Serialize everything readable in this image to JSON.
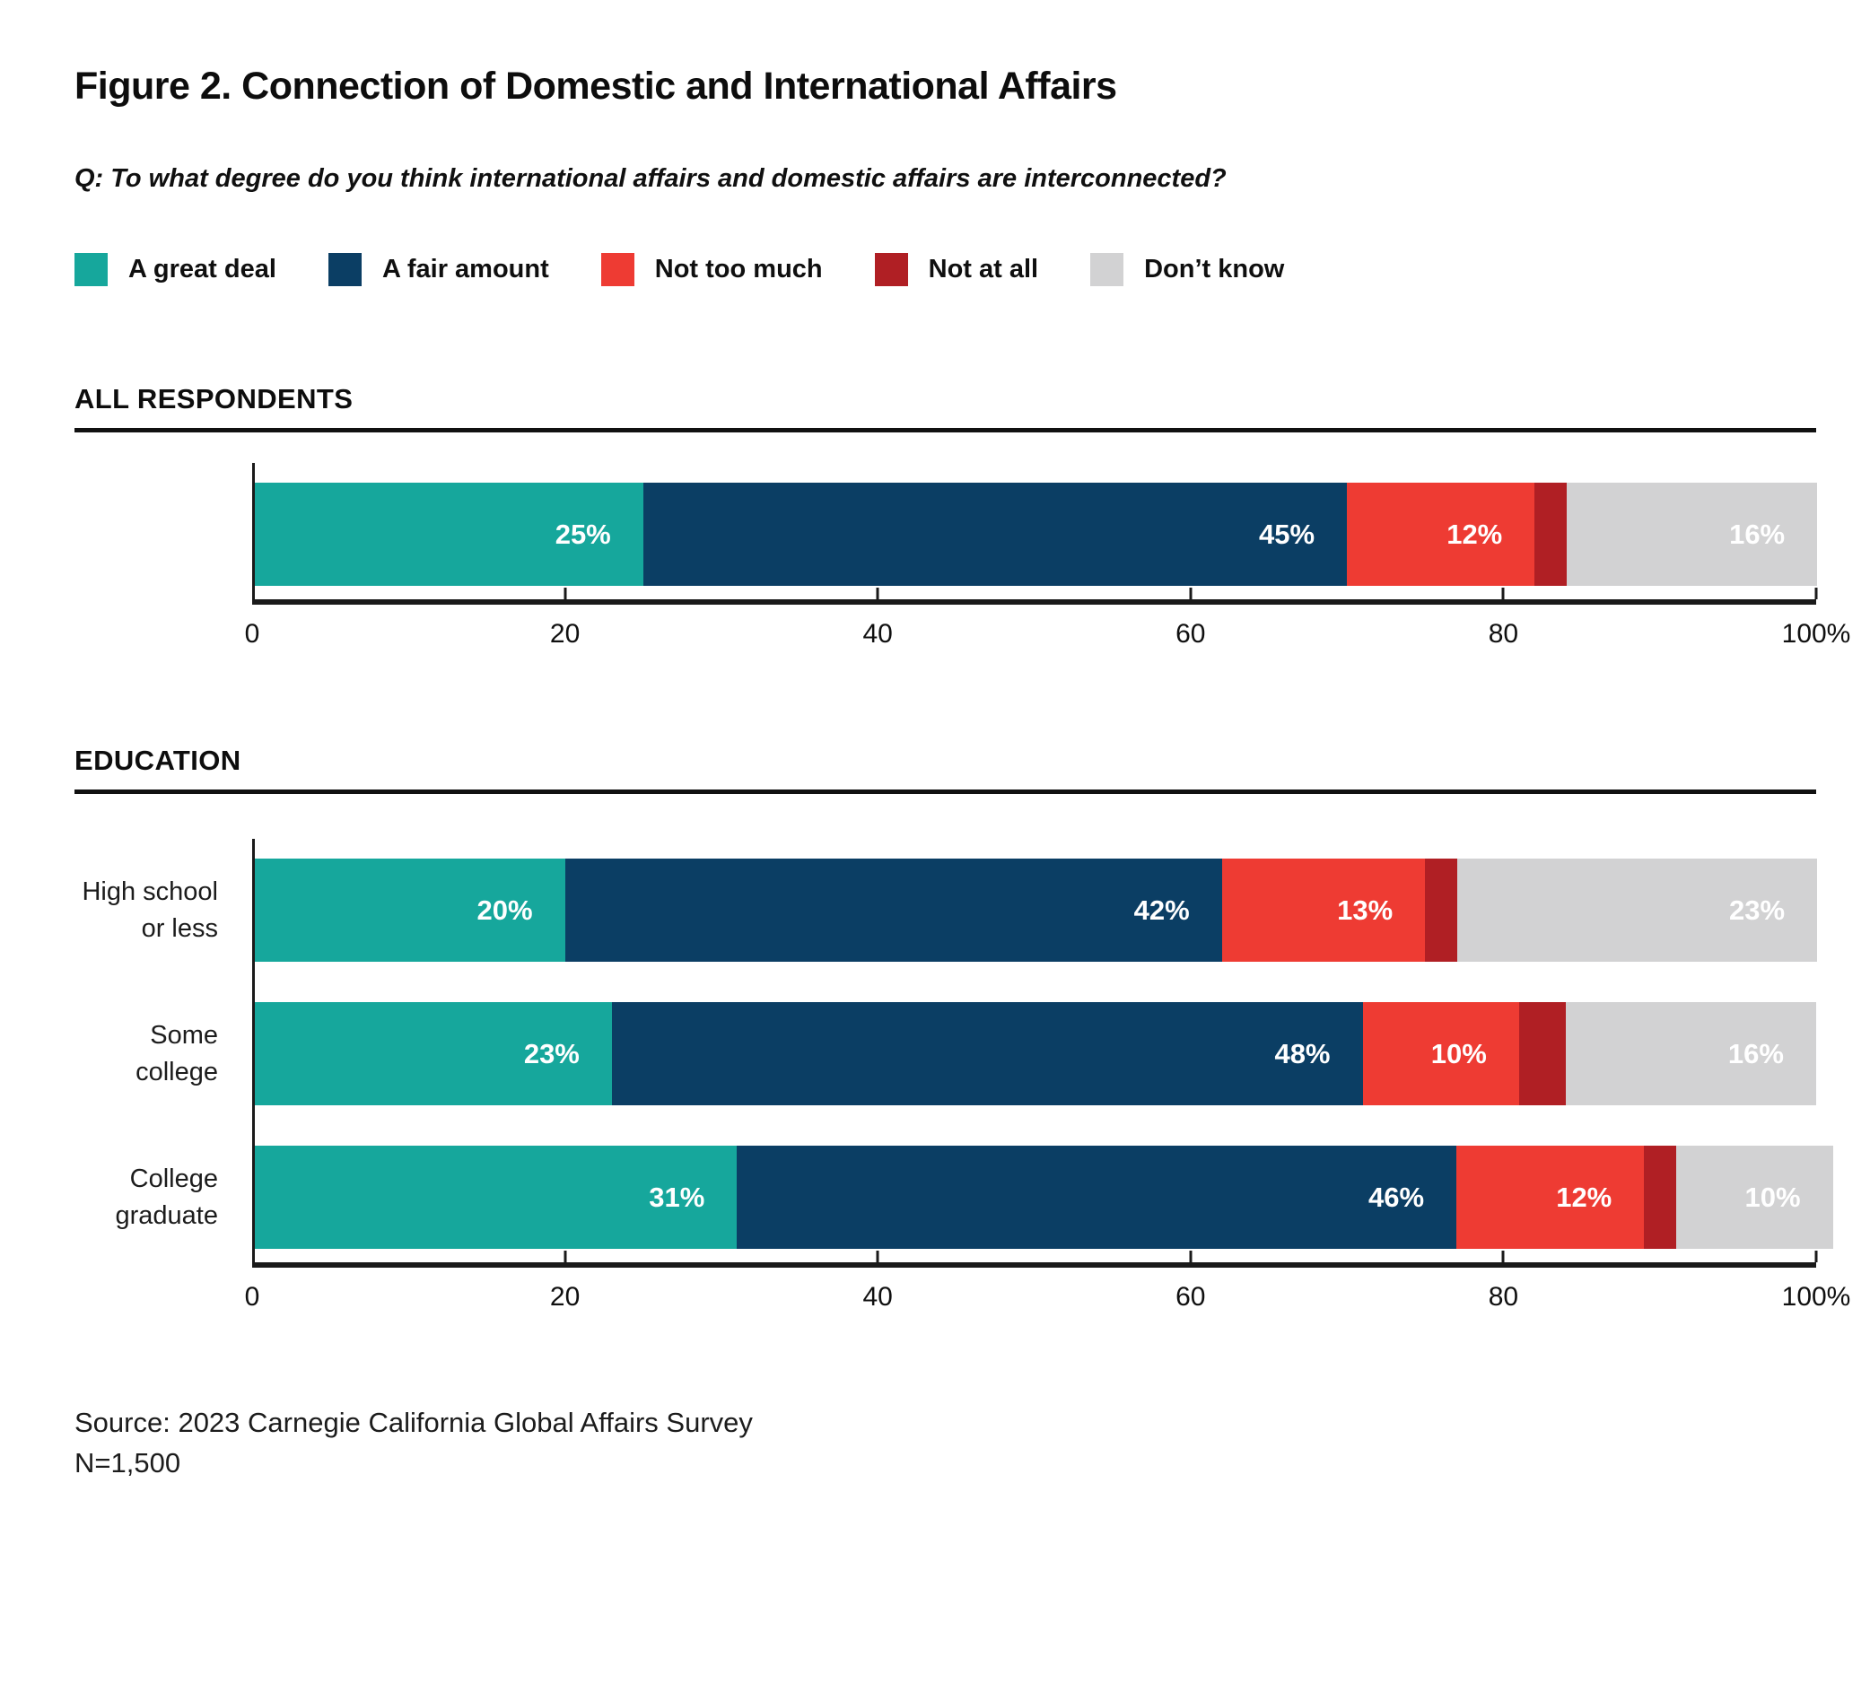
{
  "figure": {
    "title": "Figure 2. Connection of Domestic and International Affairs",
    "question": "Q: To what degree do you think international affairs and domestic affairs are interconnected?",
    "source_line1": "Source: 2023 Carnegie California Global Affairs Survey",
    "source_line2": "N=1,500"
  },
  "colors": {
    "a_great_deal": "#16a79c",
    "a_fair_amount": "#0b3e64",
    "not_too_much": "#ee3b33",
    "not_at_all": "#b01f24",
    "dont_know": "#d2d2d3",
    "axis_line": "#1a1a1a"
  },
  "legend": [
    {
      "label": "A great deal",
      "color": "#16a79c"
    },
    {
      "label": "A fair amount",
      "color": "#0b3e64"
    },
    {
      "label": "Not too much",
      "color": "#ee3b33"
    },
    {
      "label": "Not at all",
      "color": "#b01f24"
    },
    {
      "label": "Don’t know",
      "color": "#d2d2d3"
    }
  ],
  "chart_data": {
    "type": "bar",
    "variant": "stacked-horizontal",
    "unit": "percent",
    "xlim": [
      0,
      100
    ],
    "x_tick_values": [
      0,
      20,
      40,
      60,
      80,
      100
    ],
    "x_tick_labels": [
      "0",
      "20",
      "40",
      "60",
      "80",
      "100%"
    ],
    "grid": false,
    "legend_position": "top",
    "series_names": [
      "A great deal",
      "A fair amount",
      "Not too much",
      "Not at all",
      "Don’t know"
    ],
    "series_colors": [
      "#16a79c",
      "#0b3e64",
      "#ee3b33",
      "#b01f24",
      "#d2d2d3"
    ],
    "sections": [
      {
        "heading": "ALL RESPONDENTS",
        "rows": [
          {
            "label_lines": [],
            "values": [
              25,
              45,
              12,
              2,
              16
            ],
            "value_labels": [
              "25%",
              "45%",
              "12%",
              "",
              "16%"
            ]
          }
        ]
      },
      {
        "heading": "EDUCATION",
        "rows": [
          {
            "label_lines": [
              "High school",
              "or less"
            ],
            "values": [
              20,
              42,
              13,
              2,
              23
            ],
            "value_labels": [
              "20%",
              "42%",
              "13%",
              "",
              "23%"
            ]
          },
          {
            "label_lines": [
              "Some college"
            ],
            "values": [
              23,
              48,
              10,
              3,
              16
            ],
            "value_labels": [
              "23%",
              "48%",
              "10%",
              "",
              "16%"
            ]
          },
          {
            "label_lines": [
              "College",
              "graduate"
            ],
            "values": [
              31,
              46,
              12,
              1,
              10
            ],
            "value_labels": [
              "31%",
              "46%",
              "12%",
              "",
              "10%"
            ]
          }
        ]
      }
    ]
  }
}
